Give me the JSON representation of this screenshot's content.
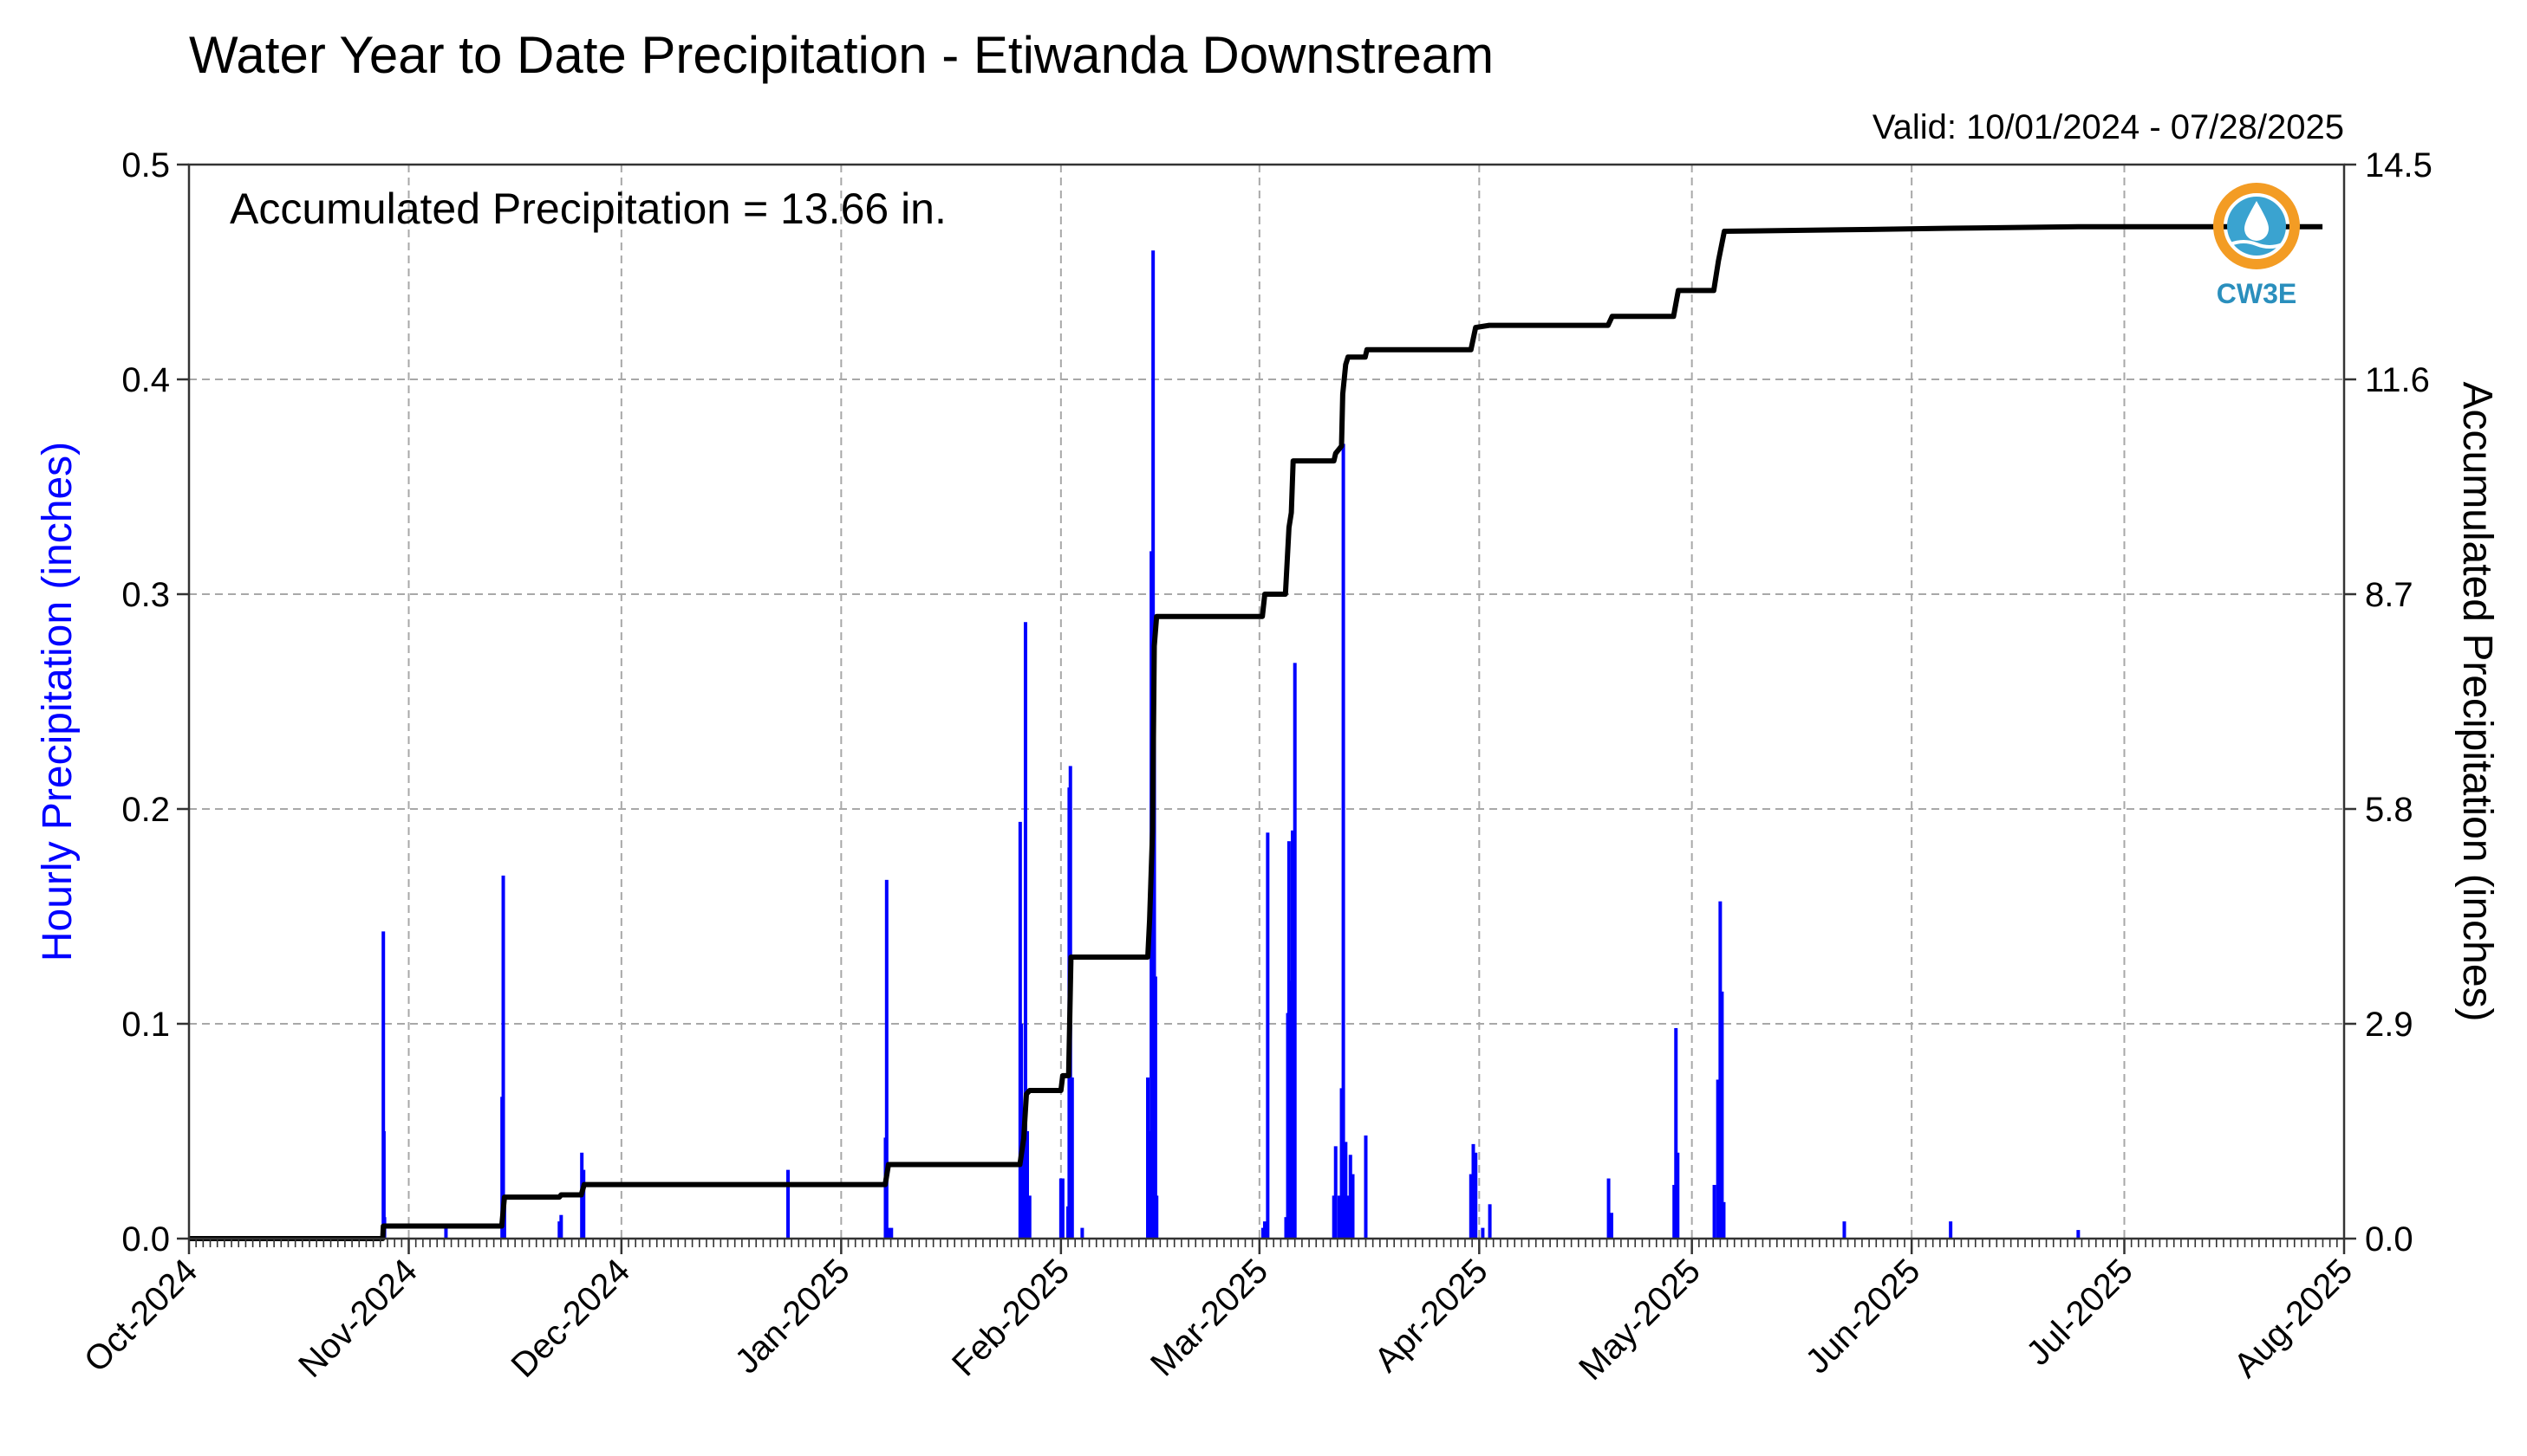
{
  "chart_data": {
    "type": "bar+line",
    "title": "Water Year to Date Precipitation - Etiwanda Downstream",
    "subtitle": "Valid: 10/01/2024 - 07/28/2025",
    "annotation": "Accumulated Precipitation = 13.66 in.",
    "ylabel_left": "Hourly Precipitation (inches)",
    "ylabel_right": "Accumulated Precipitation (inches)",
    "ylim_left": [
      0,
      0.5
    ],
    "ylim_right": [
      0,
      14.5
    ],
    "yticks_left": [
      "0.0",
      "0.1",
      "0.2",
      "0.3",
      "0.4",
      "0.5"
    ],
    "yticks_right": [
      "0.0",
      "2.9",
      "5.8",
      "8.7",
      "11.6",
      "14.5"
    ],
    "x_tick_labels": [
      "Oct-2024",
      "Nov-2024",
      "Dec-2024",
      "Jan-2025",
      "Feb-2025",
      "Mar-2025",
      "Apr-2025",
      "May-2025",
      "Jun-2025",
      "Jul-2025",
      "Aug-2025"
    ],
    "x_range": [
      "2024-10-01",
      "2025-08-01"
    ],
    "grid": true,
    "colors": {
      "hourly": "#0000ff",
      "accumulated": "#000000"
    },
    "series": [
      {
        "name": "Hourly Precipitation",
        "kind": "bar",
        "points": [
          [
            "2024-10-28T10",
            0.143
          ],
          [
            "2024-10-28T12",
            0.05
          ],
          [
            "2024-10-28T14",
            0.01
          ],
          [
            "2024-11-06T06",
            0.005
          ],
          [
            "2024-11-14T04",
            0.066
          ],
          [
            "2024-11-14T08",
            0.169
          ],
          [
            "2024-11-14T12",
            0.02
          ],
          [
            "2024-11-22T06",
            0.008
          ],
          [
            "2024-11-22T12",
            0.011
          ],
          [
            "2024-11-25T10",
            0.04
          ],
          [
            "2024-11-25T16",
            0.032
          ],
          [
            "2024-12-24T12",
            0.032
          ],
          [
            "2025-01-07T06",
            0.047
          ],
          [
            "2025-01-07T10",
            0.167
          ],
          [
            "2025-01-07T16",
            0.005
          ],
          [
            "2025-01-08T02",
            0.005
          ],
          [
            "2025-01-26T06",
            0.194
          ],
          [
            "2025-01-26T10",
            0.1
          ],
          [
            "2025-01-26T16",
            0.05
          ],
          [
            "2025-01-27T00",
            0.287
          ],
          [
            "2025-01-27T06",
            0.05
          ],
          [
            "2025-01-27T14",
            0.02
          ],
          [
            "2025-02-01T00",
            0.028
          ],
          [
            "2025-02-01T06",
            0.028
          ],
          [
            "2025-02-02T00",
            0.015
          ],
          [
            "2025-02-02T04",
            0.21
          ],
          [
            "2025-02-02T08",
            0.22
          ],
          [
            "2025-02-02T14",
            0.075
          ],
          [
            "2025-02-04T00",
            0.005
          ],
          [
            "2025-02-13T06",
            0.075
          ],
          [
            "2025-02-13T10",
            0.02
          ],
          [
            "2025-02-13T14",
            0.05
          ],
          [
            "2025-02-13T18",
            0.32
          ],
          [
            "2025-02-13T22",
            0.25
          ],
          [
            "2025-02-14T00",
            0.46
          ],
          [
            "2025-02-14T04",
            0.29
          ],
          [
            "2025-02-14T08",
            0.122
          ],
          [
            "2025-02-14T12",
            0.02
          ],
          [
            "2025-03-01T12",
            0.005
          ],
          [
            "2025-03-01T18",
            0.008
          ],
          [
            "2025-03-02T04",
            0.189
          ],
          [
            "2025-03-04T18",
            0.01
          ],
          [
            "2025-03-05T00",
            0.105
          ],
          [
            "2025-03-05T04",
            0.185
          ],
          [
            "2025-03-05T10",
            0.12
          ],
          [
            "2025-03-05T16",
            0.19
          ],
          [
            "2025-03-06T00",
            0.268
          ],
          [
            "2025-03-11T12",
            0.02
          ],
          [
            "2025-03-11T18",
            0.043
          ],
          [
            "2025-03-12T06",
            0.02
          ],
          [
            "2025-03-12T14",
            0.07
          ],
          [
            "2025-03-12T20",
            0.37
          ],
          [
            "2025-03-13T04",
            0.045
          ],
          [
            "2025-03-13T12",
            0.02
          ],
          [
            "2025-03-13T20",
            0.039
          ],
          [
            "2025-03-14T04",
            0.03
          ],
          [
            "2025-03-16T00",
            0.048
          ],
          [
            "2025-03-30T20",
            0.03
          ],
          [
            "2025-03-31T04",
            0.044
          ],
          [
            "2025-03-31T12",
            0.04
          ],
          [
            "2025-04-01T12",
            0.005
          ],
          [
            "2025-04-02T12",
            0.016
          ],
          [
            "2025-04-19T06",
            0.028
          ],
          [
            "2025-04-19T16",
            0.012
          ],
          [
            "2025-04-28T12",
            0.025
          ],
          [
            "2025-04-28T18",
            0.098
          ],
          [
            "2025-04-29T00",
            0.04
          ],
          [
            "2025-05-04T04",
            0.025
          ],
          [
            "2025-05-04T16",
            0.074
          ],
          [
            "2025-05-05T00",
            0.157
          ],
          [
            "2025-05-05T06",
            0.115
          ],
          [
            "2025-05-05T12",
            0.017
          ],
          [
            "2025-05-22T12",
            0.008
          ],
          [
            "2025-06-06T12",
            0.008
          ],
          [
            "2025-06-24T12",
            0.004
          ]
        ]
      },
      {
        "name": "Accumulated Precipitation",
        "kind": "line",
        "points": [
          [
            "2024-10-01T00",
            0.0
          ],
          [
            "2024-10-28T08",
            0.0
          ],
          [
            "2024-10-28T10",
            0.17
          ],
          [
            "2024-11-14T03",
            0.17
          ],
          [
            "2024-11-14T12",
            0.56
          ],
          [
            "2024-11-22T06",
            0.56
          ],
          [
            "2024-11-22T12",
            0.59
          ],
          [
            "2024-11-25T08",
            0.59
          ],
          [
            "2024-11-25T18",
            0.73
          ],
          [
            "2025-01-07T05",
            0.73
          ],
          [
            "2025-01-07T16",
            1.0
          ],
          [
            "2025-01-26T05",
            1.0
          ],
          [
            "2025-01-26T18",
            1.35
          ],
          [
            "2025-01-27T03",
            1.95
          ],
          [
            "2025-01-27T14",
            2.0
          ],
          [
            "2025-02-01T00",
            2.0
          ],
          [
            "2025-02-01T06",
            2.2
          ],
          [
            "2025-02-02T02",
            2.2
          ],
          [
            "2025-02-02T10",
            3.8
          ],
          [
            "2025-02-13T06",
            3.8
          ],
          [
            "2025-02-13T12",
            4.3
          ],
          [
            "2025-02-13T22",
            5.5
          ],
          [
            "2025-02-14T04",
            8.0
          ],
          [
            "2025-02-14T12",
            8.4
          ],
          [
            "2025-03-01T10",
            8.4
          ],
          [
            "2025-03-01T18",
            8.7
          ],
          [
            "2025-03-04T16",
            8.7
          ],
          [
            "2025-03-05T04",
            9.6
          ],
          [
            "2025-03-05T12",
            9.8
          ],
          [
            "2025-03-05T18",
            10.5
          ],
          [
            "2025-03-11T12",
            10.5
          ],
          [
            "2025-03-11T18",
            10.6
          ],
          [
            "2025-03-12T14",
            10.7
          ],
          [
            "2025-03-12T18",
            11.4
          ],
          [
            "2025-03-13T04",
            11.8
          ],
          [
            "2025-03-13T12",
            11.9
          ],
          [
            "2025-03-15T22",
            11.9
          ],
          [
            "2025-03-16T04",
            12.0
          ],
          [
            "2025-03-30T20",
            12.0
          ],
          [
            "2025-03-31T12",
            12.3
          ],
          [
            "2025-04-02T10",
            12.33
          ],
          [
            "2025-04-19T04",
            12.33
          ],
          [
            "2025-04-19T18",
            12.45
          ],
          [
            "2025-04-28T10",
            12.45
          ],
          [
            "2025-04-29T02",
            12.8
          ],
          [
            "2025-05-04T02",
            12.8
          ],
          [
            "2025-05-04T18",
            13.2
          ],
          [
            "2025-05-05T14",
            13.6
          ],
          [
            "2025-05-22T12",
            13.62
          ],
          [
            "2025-06-06T12",
            13.64
          ],
          [
            "2025-06-24T12",
            13.66
          ],
          [
            "2025-07-28T23",
            13.66
          ]
        ]
      }
    ]
  },
  "logo": {
    "text": "CW3E"
  }
}
